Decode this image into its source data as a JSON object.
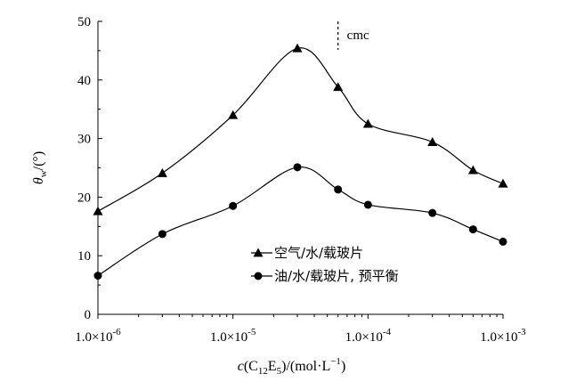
{
  "chart_data": {
    "type": "line",
    "x_scale": "log",
    "xlim": [
      1e-06,
      0.001
    ],
    "ylim": [
      0,
      50
    ],
    "y_ticks": [
      0,
      10,
      20,
      30,
      40,
      50
    ],
    "y_tick_labels": [
      "0",
      "10",
      "20",
      "30",
      "40",
      "50"
    ],
    "x_ticks": [
      1e-06,
      1e-05,
      0.0001,
      0.001
    ],
    "x_tick_labels": [
      {
        "mantissa": "1.0×10",
        "exp": "-6"
      },
      {
        "mantissa": "1.0×10",
        "exp": "-5"
      },
      {
        "mantissa": "1.0×10",
        "exp": "-4"
      },
      {
        "mantissa": "1.0×10",
        "exp": "-3"
      }
    ],
    "xlabel": {
      "p1": "c",
      "p2": "(C",
      "s1": "12",
      "p3": "E",
      "s2": "5",
      "p4": ")/(mol·L",
      "sup": "−1",
      "p5": ")"
    },
    "ylabel": {
      "main": "θ",
      "sub": "w",
      "tail": "/(°)"
    },
    "legend_position": "inside-lower-right",
    "grid": false,
    "series": [
      {
        "name": "空气/水/载玻片",
        "marker": "triangle",
        "x": [
          1e-06,
          3e-06,
          1e-05,
          3e-05,
          6e-05,
          0.0001,
          0.0003,
          0.0006,
          0.001
        ],
        "values": [
          17.6,
          24.1,
          34.0,
          45.4,
          38.8,
          32.5,
          29.4,
          24.6,
          22.3
        ]
      },
      {
        "name": "油/水/载玻片, 预平衡",
        "marker": "circle",
        "x": [
          1e-06,
          3e-06,
          1e-05,
          3e-05,
          6e-05,
          0.0001,
          0.0003,
          0.0006,
          0.001
        ],
        "values": [
          6.6,
          13.7,
          18.5,
          25.1,
          21.3,
          18.7,
          17.3,
          14.5,
          12.4
        ]
      }
    ],
    "annotation": {
      "text": "cmc",
      "x": 6e-05
    }
  },
  "colors": {
    "line": "#000000",
    "marker": "#000000",
    "background": "#ffffff"
  }
}
